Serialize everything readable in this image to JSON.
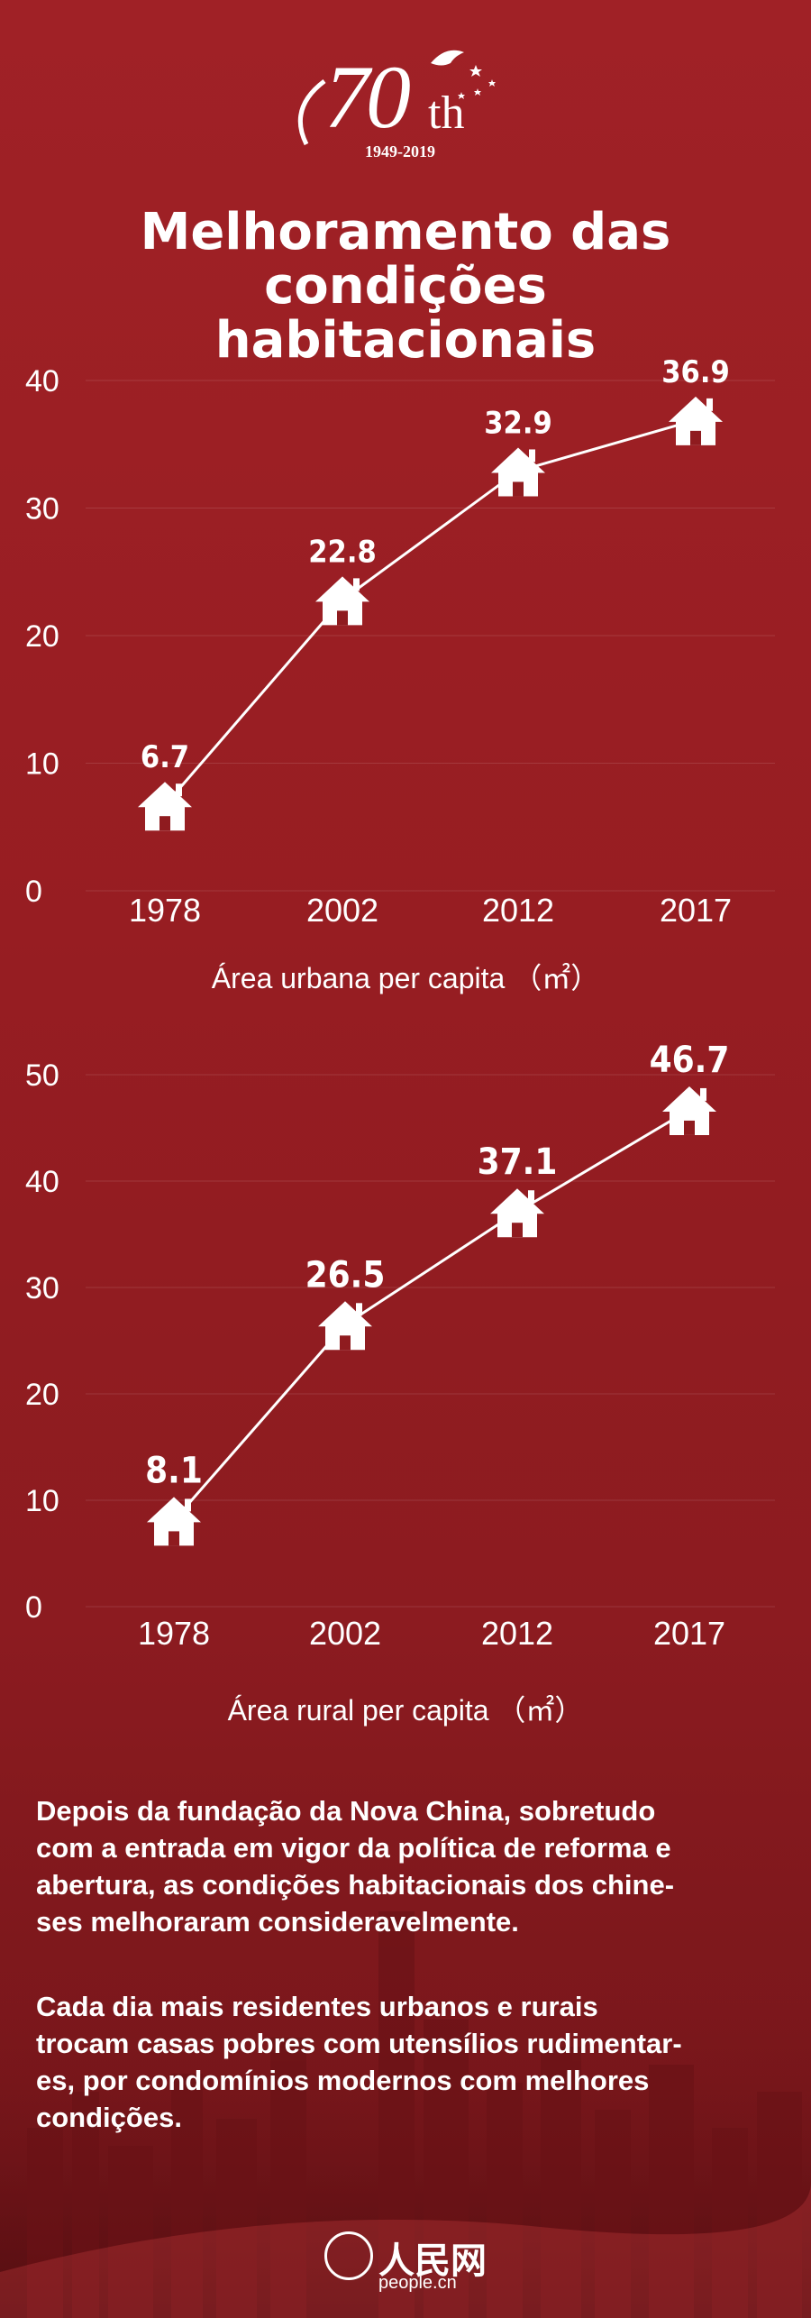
{
  "logo": {
    "number": "70",
    "suffix": "th",
    "years": "1949-2019"
  },
  "title": {
    "line1": "Melhoramento das condições",
    "line2": "habitacionais"
  },
  "chart_data": [
    {
      "type": "line",
      "categories": [
        "1978",
        "2002",
        "2012",
        "2017"
      ],
      "values": [
        6.7,
        22.8,
        32.9,
        36.9
      ],
      "value_labels": [
        "6.7",
        "22.8",
        "32.9",
        "36.9"
      ],
      "yticks": [
        0,
        10,
        20,
        30,
        40
      ],
      "ylim": [
        0,
        40
      ],
      "xlabel": "Área urbana per capita （㎡）",
      "marker": "house-icon"
    },
    {
      "type": "line",
      "categories": [
        "1978",
        "2002",
        "2012",
        "2017"
      ],
      "values": [
        8.1,
        26.5,
        37.1,
        46.7
      ],
      "value_labels": [
        "8.1",
        "26.5",
        "37.1",
        "46.7"
      ],
      "yticks": [
        0,
        10,
        20,
        30,
        40,
        50
      ],
      "ylim": [
        0,
        50
      ],
      "xlabel": "Área rural per capita （㎡）",
      "marker": "house-icon"
    }
  ],
  "paragraphs": [
    [
      "Depois da fundação da Nova China, sobretudo",
      "com a entrada em vigor da política de reforma e",
      "abertura, as condições habitacionais dos chine-",
      "ses melhoraram consideravelmente."
    ],
    [
      "Cada dia mais residentes urbanos e rurais",
      "trocam casas pobres com utensílios rudimentar-",
      "es, por condomínios modernos com melhores",
      "condições."
    ]
  ],
  "footer": {
    "brand": "人民网",
    "url": "people.cn"
  },
  "colors": {
    "background": "#8f1b1f",
    "foreground": "#ffffff"
  }
}
